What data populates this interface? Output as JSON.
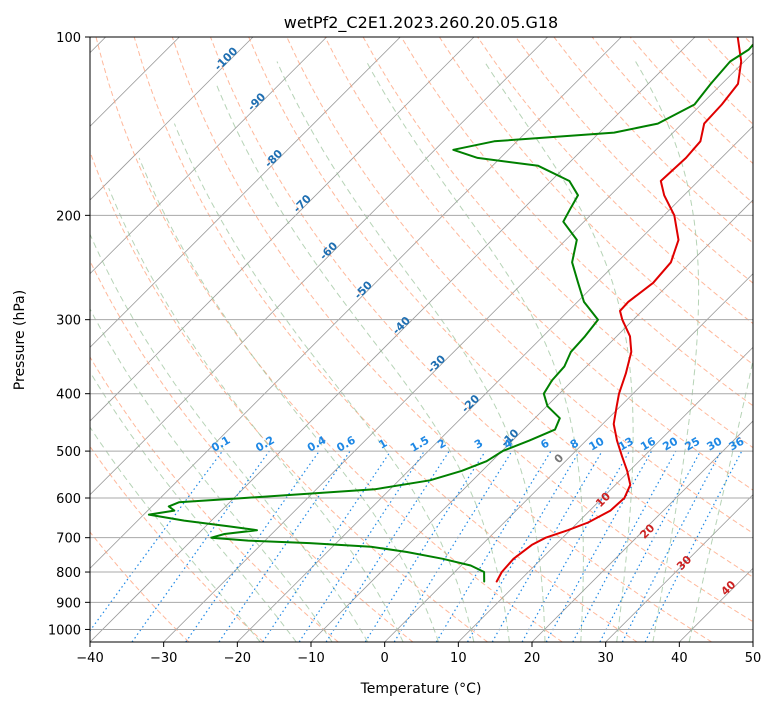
{
  "chart_data": {
    "type": "skew-t",
    "title": "wetPf2_C2E1.2023.260.20.05.G18",
    "xlabel": "Temperature (°C)",
    "ylabel": "Pressure (hPa)",
    "xlim": [
      -40,
      50
    ],
    "ylim": [
      1050,
      100
    ],
    "y_scale": "log",
    "skew": 45,
    "grid": true,
    "x_ticks": [
      -40,
      -30,
      -20,
      -10,
      0,
      10,
      20,
      30,
      40,
      50
    ],
    "x_tick_labels": [
      "−40",
      "−30",
      "−20",
      "−10",
      "0",
      "10",
      "20",
      "30",
      "40",
      "50"
    ],
    "y_ticks": [
      1000,
      900,
      800,
      700,
      600,
      500,
      400,
      300,
      200,
      100
    ],
    "y_tick_labels": [
      "1000",
      "900",
      "800",
      "700",
      "600",
      "500",
      "400",
      "300",
      "200",
      "100"
    ],
    "colors": {
      "temperature": "#e00000",
      "dewpoint": "#008000",
      "isotherm": "#9a9a9a",
      "dry_adiabat": "#ffa07a",
      "moist_adiabat": "#8fbc8f",
      "mixing_ratio": "#1e88e5",
      "iso_label": "#1f6fb2",
      "moist_label": "#cc2222",
      "curved_label": "#777777"
    },
    "series": [
      {
        "name": "temperature",
        "points": [
          {
            "p": 830,
            "t": 7.0
          },
          {
            "p": 800,
            "t": 6.4
          },
          {
            "p": 760,
            "t": 6.2
          },
          {
            "p": 720,
            "t": 6.8
          },
          {
            "p": 700,
            "t": 7.7
          },
          {
            "p": 680,
            "t": 9.7
          },
          {
            "p": 660,
            "t": 11.4
          },
          {
            "p": 630,
            "t": 12.8
          },
          {
            "p": 600,
            "t": 13.0
          },
          {
            "p": 570,
            "t": 12.0
          },
          {
            "p": 540,
            "t": 9.7
          },
          {
            "p": 510,
            "t": 7.0
          },
          {
            "p": 480,
            "t": 4.2
          },
          {
            "p": 450,
            "t": 1.5
          },
          {
            "p": 420,
            "t": -0.5
          },
          {
            "p": 400,
            "t": -1.9
          },
          {
            "p": 370,
            "t": -3.7
          },
          {
            "p": 340,
            "t": -5.9
          },
          {
            "p": 320,
            "t": -8.2
          },
          {
            "p": 300,
            "t": -11.5
          },
          {
            "p": 290,
            "t": -13.0
          },
          {
            "p": 280,
            "t": -13.1
          },
          {
            "p": 260,
            "t": -12.3
          },
          {
            "p": 240,
            "t": -12.7
          },
          {
            "p": 220,
            "t": -14.7
          },
          {
            "p": 200,
            "t": -18.6
          },
          {
            "p": 185,
            "t": -22.7
          },
          {
            "p": 175,
            "t": -25.1
          },
          {
            "p": 160,
            "t": -24.8
          },
          {
            "p": 150,
            "t": -25.1
          },
          {
            "p": 140,
            "t": -27.0
          },
          {
            "p": 130,
            "t": -27.2
          },
          {
            "p": 120,
            "t": -27.8
          },
          {
            "p": 110,
            "t": -30.4
          },
          {
            "p": 100,
            "t": -34.2
          }
        ]
      },
      {
        "name": "dewpoint",
        "points": [
          {
            "p": 830,
            "t": 5.3
          },
          {
            "p": 800,
            "t": 4.0
          },
          {
            "p": 780,
            "t": 1.3
          },
          {
            "p": 760,
            "t": -3.4
          },
          {
            "p": 740,
            "t": -9.2
          },
          {
            "p": 725,
            "t": -14.8
          },
          {
            "p": 715,
            "t": -23.6
          },
          {
            "p": 708,
            "t": -32.3
          },
          {
            "p": 700,
            "t": -37.7
          },
          {
            "p": 690,
            "t": -36.4
          },
          {
            "p": 680,
            "t": -32.5
          },
          {
            "p": 670,
            "t": -36.8
          },
          {
            "p": 655,
            "t": -43.7
          },
          {
            "p": 640,
            "t": -49.3
          },
          {
            "p": 630,
            "t": -46.4
          },
          {
            "p": 620,
            "t": -47.7
          },
          {
            "p": 610,
            "t": -46.9
          },
          {
            "p": 600,
            "t": -38.6
          },
          {
            "p": 580,
            "t": -22.1
          },
          {
            "p": 560,
            "t": -15.8
          },
          {
            "p": 540,
            "t": -12.8
          },
          {
            "p": 520,
            "t": -10.7
          },
          {
            "p": 500,
            "t": -9.9
          },
          {
            "p": 480,
            "t": -7.7
          },
          {
            "p": 460,
            "t": -5.7
          },
          {
            "p": 440,
            "t": -6.6
          },
          {
            "p": 420,
            "t": -9.9
          },
          {
            "p": 400,
            "t": -12.1
          },
          {
            "p": 380,
            "t": -12.8
          },
          {
            "p": 360,
            "t": -13.0
          },
          {
            "p": 340,
            "t": -14.1
          },
          {
            "p": 320,
            "t": -14.3
          },
          {
            "p": 300,
            "t": -14.8
          },
          {
            "p": 280,
            "t": -19.1
          },
          {
            "p": 260,
            "t": -22.5
          },
          {
            "p": 240,
            "t": -26.1
          },
          {
            "p": 220,
            "t": -28.5
          },
          {
            "p": 205,
            "t": -32.8
          },
          {
            "p": 195,
            "t": -33.6
          },
          {
            "p": 185,
            "t": -34.4
          },
          {
            "p": 175,
            "t": -37.5
          },
          {
            "p": 165,
            "t": -43.8
          },
          {
            "p": 160,
            "t": -53.1
          },
          {
            "p": 155,
            "t": -57.5
          },
          {
            "p": 150,
            "t": -53.1
          },
          {
            "p": 145,
            "t": -38.0
          },
          {
            "p": 140,
            "t": -33.3
          },
          {
            "p": 130,
            "t": -30.9
          },
          {
            "p": 120,
            "t": -31.5
          },
          {
            "p": 110,
            "t": -31.9
          },
          {
            "p": 105,
            "t": -31.0
          },
          {
            "p": 100,
            "t": -31.2
          }
        ]
      }
    ],
    "isotherm_labels": [
      {
        "text": "-100",
        "t": -100,
        "p": 110
      },
      {
        "text": "-90",
        "t": -90,
        "p": 130
      },
      {
        "text": "-80",
        "t": -80,
        "p": 162
      },
      {
        "text": "-70",
        "t": -70,
        "p": 193
      },
      {
        "text": "-60",
        "t": -60,
        "p": 232
      },
      {
        "text": "-50",
        "t": -50,
        "p": 270
      },
      {
        "text": "-40",
        "t": -40,
        "p": 310
      },
      {
        "text": "-30",
        "t": -30,
        "p": 360
      },
      {
        "text": "-20",
        "t": -20,
        "p": 420
      },
      {
        "text": "-10",
        "t": -10,
        "p": 480
      }
    ],
    "mixing_ratio_labels": [
      "0.1",
      "0.2",
      "0.4",
      "0.6",
      "1",
      "1.5",
      "2",
      "3",
      "4",
      "6",
      "8",
      "10",
      "13",
      "16",
      "20",
      "25",
      "30",
      "36"
    ],
    "mixing_ratio_label_temps": [
      -22,
      -16,
      -9,
      -5,
      0,
      5,
      8,
      13,
      17,
      22,
      26,
      29,
      33,
      36,
      39,
      42,
      45,
      48
    ],
    "moist_adiabat_labels": [
      {
        "text": "0",
        "t": 24,
        "p": 520,
        "color_key": "curved_label"
      },
      {
        "text": "10",
        "t": 30,
        "p": 610,
        "color_key": "moist_label"
      },
      {
        "text": "20",
        "t": 36,
        "p": 690,
        "color_key": "moist_label"
      },
      {
        "text": "30",
        "t": 41,
        "p": 780,
        "color_key": "moist_label"
      },
      {
        "text": "40",
        "t": 47,
        "p": 860,
        "color_key": "moist_label"
      }
    ]
  }
}
